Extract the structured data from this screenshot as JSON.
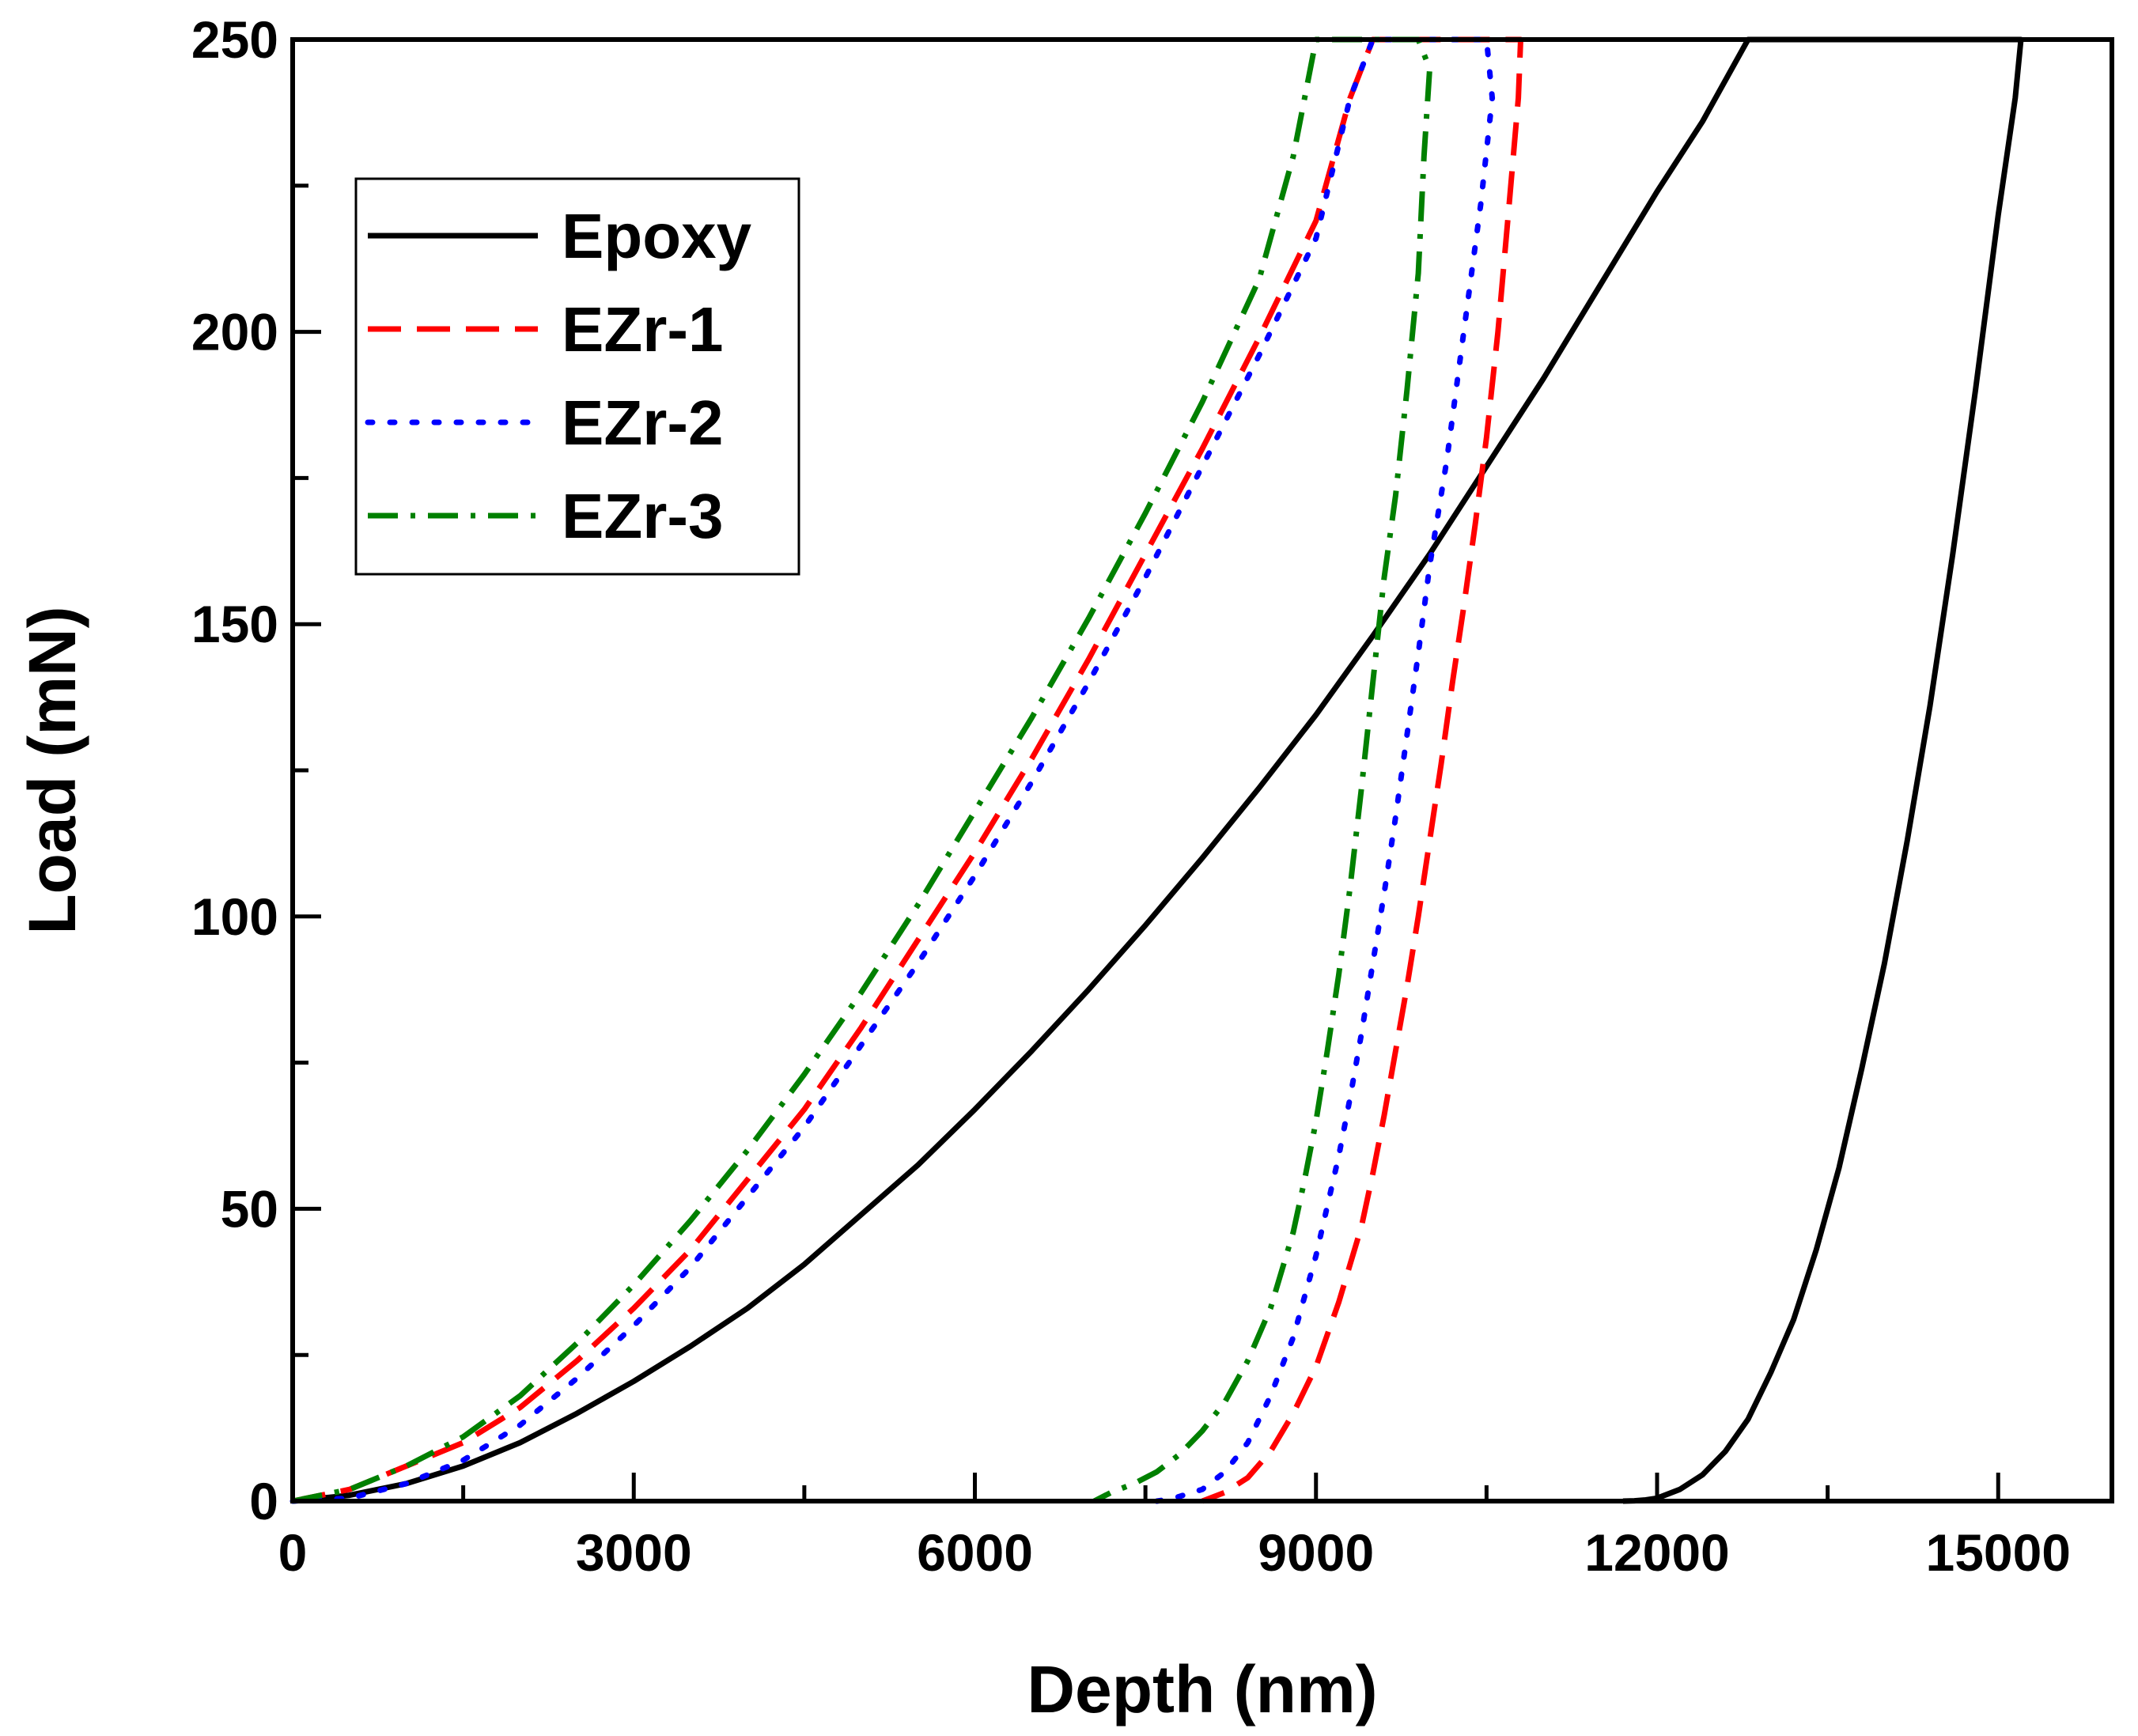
{
  "chart_data": {
    "type": "line",
    "title": "",
    "xlabel": "Depth (nm)",
    "ylabel": "Load (mN)",
    "xlim": [
      0,
      16000
    ],
    "ylim": [
      0,
      250
    ],
    "xticks": [
      0,
      3000,
      6000,
      9000,
      12000,
      15000
    ],
    "xtick_labels": [
      "0",
      "3000",
      "6000",
      "9000",
      "12000",
      "15000"
    ],
    "yticks": [
      0,
      50,
      100,
      150,
      200,
      250
    ],
    "ytick_labels": [
      "0",
      "50",
      "100",
      "150",
      "200",
      "250"
    ],
    "legend_position": "top-left",
    "series": [
      {
        "name": "Epoxy",
        "color": "#000000",
        "style": "solid",
        "x": [
          0,
          500,
          1000,
          1500,
          2000,
          2500,
          3000,
          3500,
          4000,
          4500,
          5000,
          5500,
          6000,
          6500,
          7000,
          7500,
          8000,
          8500,
          9000,
          9500,
          10000,
          10500,
          11000,
          11500,
          12000,
          12400,
          12800,
          13200,
          13600,
          14000,
          14400,
          14800,
          15100,
          15200,
          15150,
          15000,
          14800,
          14600,
          14400,
          14200,
          14000,
          13800,
          13600,
          13400,
          13200,
          13000,
          12800,
          12600,
          12400,
          12200,
          12000,
          11900,
          11800,
          11700
        ],
        "y": [
          0,
          1,
          3,
          6,
          10,
          15,
          20.5,
          26.5,
          33,
          40.5,
          49,
          57.5,
          67,
          77,
          87.5,
          98.5,
          110,
          122,
          134.5,
          148,
          162,
          177,
          192,
          208,
          224,
          236,
          250,
          250,
          250,
          250,
          250,
          250,
          250,
          250,
          240,
          220,
          190,
          162,
          136,
          113,
          92,
          74,
          57,
          43,
          31,
          22,
          14,
          8.5,
          4.5,
          2,
          0.5,
          0.2,
          0.05,
          0
        ]
      },
      {
        "name": "EZr-1",
        "color": "#ff0000",
        "style": "dashed",
        "x": [
          0,
          500,
          1000,
          1500,
          2000,
          2500,
          3000,
          3500,
          4000,
          4500,
          5000,
          5500,
          6000,
          6500,
          7000,
          7500,
          8000,
          8500,
          9000,
          9300,
          9500,
          10000,
          10400,
          10700,
          10800,
          10780,
          10700,
          10600,
          10500,
          10400,
          10300,
          10200,
          10100,
          10000,
          9900,
          9800,
          9700,
          9600,
          9500,
          9400,
          9200,
          9000,
          8800,
          8600,
          8400,
          8200,
          8000
        ],
        "y": [
          0,
          2,
          6,
          10,
          16,
          24,
          33,
          43,
          55,
          67,
          81,
          96,
          111,
          127,
          144,
          162,
          180,
          199,
          219,
          240,
          250,
          250,
          250,
          250,
          250,
          240,
          222,
          200,
          182,
          167,
          153,
          140,
          126,
          113,
          100,
          88,
          77,
          66,
          56,
          47,
          34,
          23,
          15,
          8.5,
          4,
          1.5,
          0
        ]
      },
      {
        "name": "EZr-2",
        "color": "#0000ff",
        "style": "dotted",
        "x": [
          0,
          500,
          1000,
          1500,
          2000,
          2500,
          3000,
          3500,
          4000,
          4500,
          5000,
          5500,
          6000,
          6500,
          7000,
          7500,
          8000,
          8500,
          9000,
          9300,
          9500,
          9800,
          10200,
          10500,
          10550,
          10450,
          10300,
          10150,
          10000,
          9900,
          9800,
          9700,
          9600,
          9500,
          9400,
          9300,
          9200,
          9000,
          8800,
          8600,
          8400,
          8200,
          8000,
          7800,
          7700,
          7600
        ],
        "y": [
          0,
          0.5,
          3,
          7,
          13,
          21,
          30,
          40,
          52,
          64,
          78,
          92,
          107,
          123,
          140,
          158,
          177,
          196,
          216,
          240,
          250,
          250,
          250,
          250,
          240,
          222,
          200,
          178,
          160,
          145,
          131,
          117,
          104,
          92,
          80,
          69,
          59,
          42,
          28,
          18,
          10,
          5,
          2,
          0.8,
          0.3,
          0
        ]
      },
      {
        "name": "EZr-3",
        "color": "#008000",
        "style": "dashdot",
        "x": [
          0,
          500,
          1000,
          1500,
          2000,
          2500,
          3000,
          3500,
          4000,
          4500,
          5000,
          5500,
          6000,
          6500,
          7000,
          7500,
          8000,
          8500,
          8800,
          9000,
          9300,
          9600,
          9900,
          10000,
          9950,
          9900,
          9800,
          9700,
          9600,
          9500,
          9400,
          9300,
          9200,
          9100,
          9000,
          8900,
          8800,
          8600,
          8400,
          8200,
          8000,
          7800,
          7600,
          7400,
          7200,
          7050
        ],
        "y": [
          0,
          2,
          6,
          11,
          18,
          27,
          37,
          48,
          60,
          73,
          87,
          102,
          118,
          134,
          151,
          169,
          188,
          209,
          230,
          250,
          250,
          250,
          250,
          245,
          230,
          210,
          190,
          172,
          158,
          140,
          122,
          105,
          90,
          77,
          65,
          55,
          46,
          33,
          24,
          17,
          12,
          8,
          5,
          3,
          1.5,
          0
        ]
      }
    ]
  }
}
